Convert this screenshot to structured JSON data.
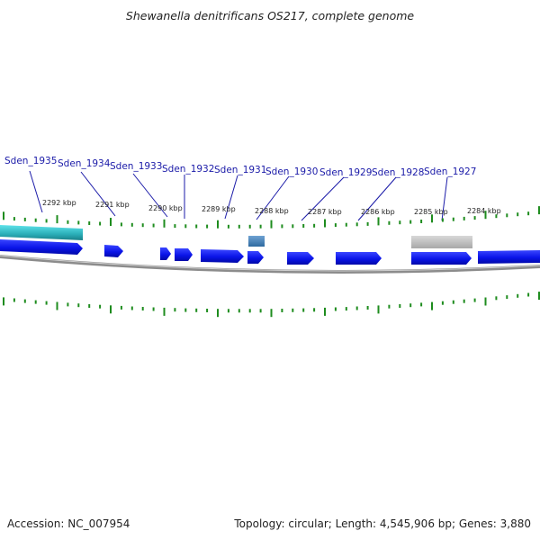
{
  "title": "Shewanella denitrificans OS217, complete genome",
  "footer": {
    "accession": "Accession: NC_007954",
    "summary": "Topology: circular; Length: 4,545,906 bp; Genes: 3,880"
  },
  "colors": {
    "gene_forward": "#0a14e8",
    "gene_highlight": "#2aaeb8",
    "rna_feature": "#3a78b0",
    "pseudo_feature": "#b8b8b8",
    "backbone": "#8c8c8c",
    "tick": "#1e8c1e",
    "label_text": "#1a1aa8"
  },
  "gene_labels": [
    "Sden_1935",
    "Sden_1934",
    "Sden_1933",
    "Sden_1932",
    "Sden_1931",
    "Sden_1930",
    "Sden_1929",
    "Sden_1928",
    "Sden_1927"
  ],
  "kbp_labels": [
    "2292 kbp",
    "2291 kbp",
    "2290 kbp",
    "2289 kbp",
    "2288 kbp",
    "2287 kbp",
    "2286 kbp",
    "2285 kbp",
    "2284 kbp"
  ]
}
